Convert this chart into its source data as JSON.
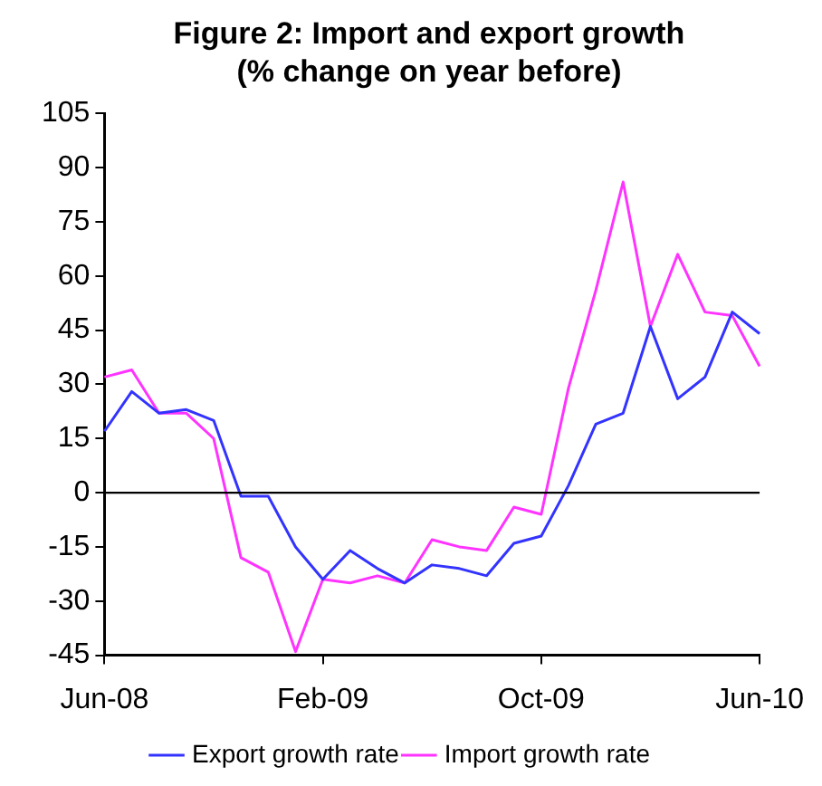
{
  "chart_data": {
    "type": "line",
    "title": "Figure 2: Import and export growth",
    "subtitle": "(% change on year before)",
    "categories": [
      "Jun-08",
      null,
      null,
      null,
      null,
      null,
      null,
      null,
      "Feb-09",
      null,
      null,
      null,
      null,
      null,
      null,
      null,
      "Oct-09",
      null,
      null,
      null,
      null,
      null,
      null,
      null,
      "Jun-10"
    ],
    "series": [
      {
        "name": "Export growth rate",
        "color": "#3333ff",
        "values": [
          17,
          28,
          22,
          23,
          20,
          -1,
          -1,
          -15,
          -24,
          -16,
          -21,
          -25,
          -20,
          -21,
          -23,
          -14,
          -12,
          2,
          19,
          22,
          46,
          26,
          32,
          50,
          44
        ]
      },
      {
        "name": "Import growth rate",
        "color": "#ff33ff",
        "values": [
          32,
          34,
          22,
          22,
          15,
          -18,
          -22,
          -44,
          -24,
          -25,
          -23,
          -25,
          -13,
          -15,
          -16,
          -4,
          -6,
          29,
          56,
          86,
          46,
          66,
          50,
          49,
          35
        ]
      }
    ],
    "ylim": [
      -45,
      105
    ],
    "yticks": [
      -45,
      -30,
      -15,
      0,
      15,
      30,
      45,
      60,
      75,
      90,
      105
    ],
    "ref_lines": [
      {
        "axis": "y",
        "value": 0,
        "color": "#000000"
      }
    ],
    "grid": false,
    "legend": "bottom",
    "marker": "none",
    "line_style": "solid"
  }
}
